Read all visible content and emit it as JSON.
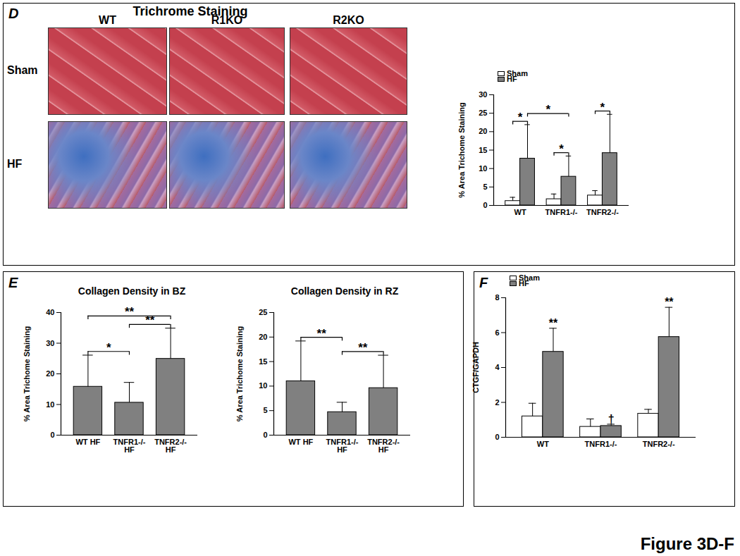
{
  "figure_label": "Figure 3D-F",
  "micrographs": {
    "panel": "D",
    "title": "Trichrome Staining",
    "columns": [
      "WT",
      "R1KO",
      "R2KO"
    ],
    "rows": [
      "Sham",
      "HF"
    ]
  },
  "chart_data": [
    {
      "type": "bar",
      "ylabel": "% Area Trichome Staining",
      "categories": [
        "WT",
        "TNFR1-/-",
        "TNFR2-/-"
      ],
      "series": [
        {
          "name": "Sham",
          "color": "#ffffff",
          "values": [
            1.2,
            1.7,
            2.7
          ],
          "errors": [
            1.0,
            1.4,
            1.3
          ]
        },
        {
          "name": "HF",
          "color": "#808080",
          "values": [
            12.7,
            7.8,
            14.2
          ],
          "errors": [
            9.2,
            5.6,
            10.5
          ]
        }
      ],
      "ylim": [
        0,
        30
      ],
      "yticks": [
        0,
        5,
        10,
        15,
        20,
        25,
        30
      ],
      "legend": "upper left",
      "annotations": [
        {
          "text": "*",
          "bars": [
            [
              "WT",
              "Sham"
            ],
            [
              "WT",
              "HF"
            ]
          ]
        },
        {
          "text": "*",
          "bars": [
            [
              "WT",
              "HF"
            ],
            [
              "TNFR1-/-",
              "HF"
            ]
          ]
        },
        {
          "text": "*",
          "bars": [
            [
              "TNFR1-/-",
              "Sham"
            ],
            [
              "TNFR1-/-",
              "HF"
            ]
          ]
        },
        {
          "text": "*",
          "bars": [
            [
              "TNFR2-/-",
              "Sham"
            ],
            [
              "TNFR2-/-",
              "HF"
            ]
          ]
        }
      ]
    },
    {
      "type": "bar",
      "panel": "E",
      "title": "Collagen Density in BZ",
      "ylabel": "% Area Trichome Staining",
      "categories": [
        "WT HF",
        "TNFR1-/-\nHF",
        "TNFR2-/-\nHF"
      ],
      "values": [
        15.8,
        10.6,
        24.9
      ],
      "errors": [
        10.3,
        6.6,
        10.0
      ],
      "color": "#808080",
      "ylim": [
        0,
        40
      ],
      "yticks": [
        0,
        10,
        20,
        30,
        40
      ],
      "annotations": [
        {
          "text": "*",
          "bars": [
            [
              "WT HF"
            ],
            [
              "TNFR1-/-\nHF"
            ]
          ]
        },
        {
          "text": "**",
          "bars": [
            [
              "TNFR1-/-\nHF"
            ],
            [
              "TNFR2-/-\nHF"
            ]
          ]
        },
        {
          "text": "**",
          "bars": [
            [
              "WT HF"
            ],
            [
              "TNFR2-/-\nHF"
            ]
          ]
        }
      ]
    },
    {
      "type": "bar",
      "title": "Collagen Density in RZ",
      "ylabel": "% Area Trichome Staining",
      "categories": [
        "WT HF",
        "TNFR1-/-\nHF",
        "TNFR2-/-\nHF"
      ],
      "values": [
        11.0,
        4.7,
        9.6
      ],
      "errors": [
        8.2,
        2.0,
        6.7
      ],
      "color": "#808080",
      "ylim": [
        0,
        25
      ],
      "yticks": [
        0,
        5,
        10,
        15,
        20,
        25
      ],
      "annotations": [
        {
          "text": "**",
          "bars": [
            [
              "WT HF"
            ],
            [
              "TNFR1-/-\nHF"
            ]
          ]
        },
        {
          "text": "**",
          "bars": [
            [
              "TNFR1-/-\nHF"
            ],
            [
              "TNFR2-/-\nHF"
            ]
          ]
        }
      ]
    },
    {
      "type": "bar",
      "panel": "F",
      "ylabel": "CTGF/GAPDH",
      "categories": [
        "WT",
        "TNFR1-/-",
        "TNFR2-/-"
      ],
      "series": [
        {
          "name": "Sham",
          "color": "#ffffff",
          "values": [
            1.2,
            0.6,
            1.35
          ],
          "errors": [
            0.75,
            0.45,
            0.25
          ]
        },
        {
          "name": "HF",
          "color": "#808080",
          "values": [
            4.9,
            0.65,
            5.75
          ],
          "errors": [
            1.35,
            0.1,
            1.7
          ],
          "significance_labels": [
            "**",
            "†",
            "**"
          ]
        }
      ],
      "ylim": [
        0,
        8
      ],
      "yticks": [
        0,
        2,
        4,
        6,
        8
      ],
      "legend": "upper left"
    }
  ]
}
